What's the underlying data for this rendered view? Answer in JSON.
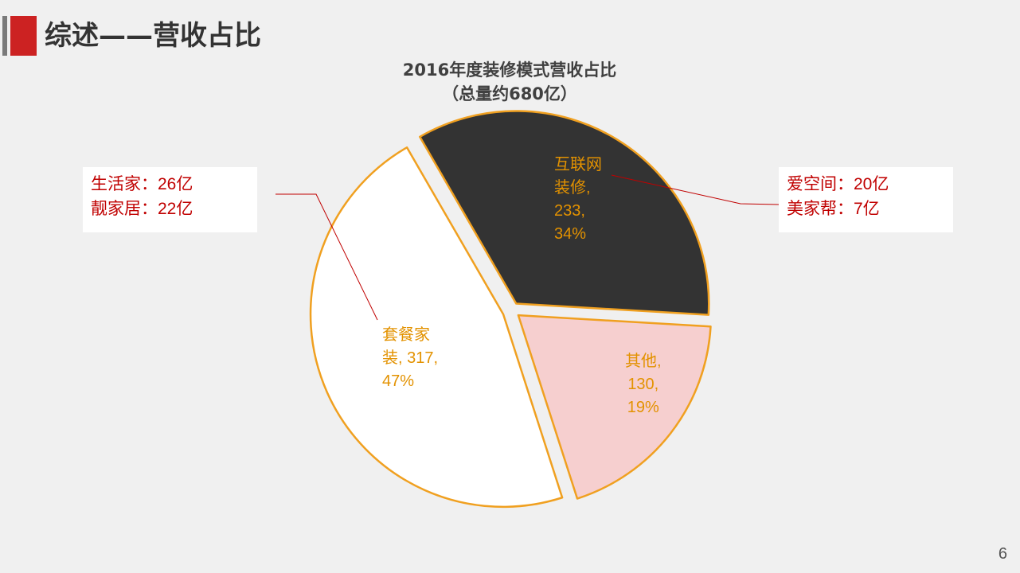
{
  "page": {
    "title": "综述——营收占比",
    "page_number": "6"
  },
  "chart_data": {
    "type": "pie",
    "title_line1": "2016年度装修模式营收占比",
    "title_line2": "（总量约680亿）",
    "slices": [
      {
        "category": "互联网装修",
        "value": 233,
        "percent": 34,
        "label_lines": [
          "互联网",
          "装修,",
          "233,",
          "34%"
        ],
        "fill": "#333333"
      },
      {
        "category": "其他",
        "value": 130,
        "percent": 19,
        "label_lines": [
          "其他,",
          "130,",
          "19%"
        ],
        "fill": "#f6cfcf"
      },
      {
        "category": "套餐家装",
        "value": 317,
        "percent": 47,
        "label_lines": [
          "套餐家",
          "装, 317,",
          "47%"
        ],
        "fill": "#ffffff"
      }
    ],
    "stroke_color": "#f0a020",
    "label_color": "#e39200"
  },
  "callouts": {
    "left": [
      {
        "name": "生活家：",
        "value": "26亿"
      },
      {
        "name": "靓家居：",
        "value": "22亿"
      }
    ],
    "right": [
      {
        "name": "爱空间：",
        "value": "20亿"
      },
      {
        "name": "美家帮：",
        "value": "7亿"
      }
    ]
  },
  "colors": {
    "accent_red": "#cc2222",
    "callout_text": "#c00000",
    "leader_line": "#c00000"
  }
}
